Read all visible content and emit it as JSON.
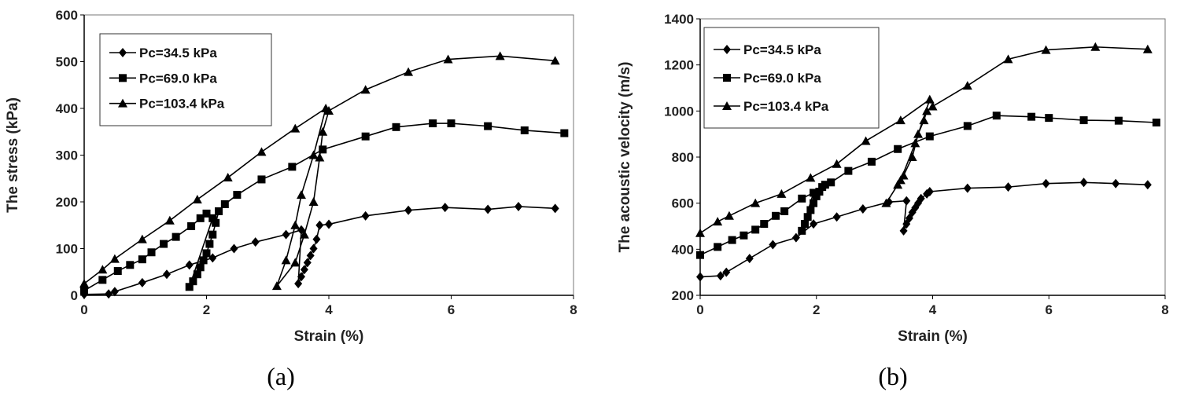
{
  "chart_data": [
    {
      "type": "line",
      "panel_label": "(a)",
      "title": "",
      "xlabel": "Strain (%)",
      "ylabel": "The  stress (kPa)",
      "xlim": [
        0,
        8
      ],
      "ylim": [
        0,
        600
      ],
      "xticks": [
        0,
        2,
        4,
        6,
        8
      ],
      "yticks": [
        0,
        100,
        200,
        300,
        400,
        500,
        600
      ],
      "legend": "top-left",
      "grid": false,
      "series": [
        {
          "name": "Pc=34.5 kPa",
          "marker": "diamond",
          "x": [
            0,
            0.4,
            0.5,
            0.95,
            1.35,
            1.72,
            2.1,
            2.45,
            2.8,
            3.3,
            3.55,
            3.5,
            3.55,
            3.6,
            3.65,
            3.7,
            3.75,
            3.8,
            3.85,
            4.0,
            4.6,
            5.3,
            5.9,
            6.6,
            7.1,
            7.7
          ],
          "y": [
            2,
            3,
            8,
            27,
            45,
            65,
            80,
            100,
            114,
            130,
            140,
            25,
            40,
            55,
            70,
            85,
            100,
            120,
            150,
            152,
            170,
            182,
            188,
            184,
            190,
            186
          ]
        },
        {
          "name": "Pc=69.0 kPa",
          "marker": "square",
          "x": [
            0,
            0.3,
            0.55,
            0.75,
            0.95,
            1.1,
            1.3,
            1.5,
            1.75,
            1.9,
            2.0,
            2.1,
            1.72,
            1.78,
            1.85,
            1.9,
            1.95,
            2.0,
            2.05,
            2.1,
            2.15,
            2.2,
            2.3,
            2.5,
            2.9,
            3.4,
            3.9,
            4.6,
            5.1,
            5.7,
            6.0,
            6.6,
            7.2,
            7.85
          ],
          "y": [
            10,
            33,
            52,
            65,
            77,
            92,
            110,
            125,
            148,
            165,
            175,
            165,
            18,
            30,
            45,
            60,
            75,
            90,
            110,
            130,
            155,
            180,
            195,
            215,
            248,
            275,
            312,
            340,
            360,
            368,
            368,
            362,
            353,
            347
          ]
        },
        {
          "name": "Pc=103.4 kPa",
          "marker": "triangle",
          "x": [
            0,
            0.3,
            0.5,
            0.95,
            1.4,
            1.85,
            2.35,
            2.9,
            3.45,
            3.95,
            3.75,
            3.55,
            3.45,
            3.3,
            3.15,
            3.45,
            3.6,
            3.75,
            3.85,
            3.9,
            4.0,
            4.6,
            5.3,
            5.95,
            6.8,
            7.7
          ],
          "y": [
            25,
            55,
            78,
            120,
            160,
            205,
            252,
            307,
            357,
            400,
            300,
            215,
            150,
            75,
            20,
            70,
            130,
            200,
            295,
            350,
            395,
            440,
            478,
            505,
            512,
            502
          ]
        }
      ]
    },
    {
      "type": "line",
      "panel_label": "(b)",
      "title": "",
      "xlabel": "Strain (%)",
      "ylabel": "The acoustic velocity (m/s)",
      "xlim": [
        0,
        8
      ],
      "ylim": [
        200,
        1400
      ],
      "xticks": [
        0,
        2,
        4,
        6,
        8
      ],
      "yticks": [
        200,
        400,
        600,
        800,
        1000,
        1200,
        1400
      ],
      "legend": "top-left",
      "grid": false,
      "series": [
        {
          "name": "Pc=34.5 kPa",
          "marker": "diamond",
          "x": [
            0,
            0.35,
            0.45,
            0.85,
            1.25,
            1.65,
            1.95,
            2.35,
            2.8,
            3.25,
            3.55,
            3.5,
            3.55,
            3.6,
            3.65,
            3.7,
            3.75,
            3.8,
            3.9,
            3.95,
            4.6,
            5.3,
            5.95,
            6.6,
            7.15,
            7.7
          ],
          "y": [
            280,
            285,
            300,
            360,
            420,
            450,
            510,
            540,
            575,
            605,
            610,
            480,
            510,
            535,
            560,
            580,
            600,
            620,
            640,
            650,
            665,
            670,
            685,
            690,
            685,
            680
          ]
        },
        {
          "name": "Pc=69.0 kPa",
          "marker": "square",
          "x": [
            0,
            0.3,
            0.55,
            0.75,
            0.95,
            1.1,
            1.3,
            1.45,
            1.75,
            1.95,
            1.75,
            1.8,
            1.85,
            1.9,
            1.95,
            2.0,
            2.05,
            2.1,
            2.15,
            2.25,
            2.55,
            2.95,
            3.4,
            3.95,
            4.6,
            5.1,
            5.7,
            6.0,
            6.6,
            7.2,
            7.85
          ],
          "y": [
            375,
            410,
            440,
            460,
            485,
            510,
            545,
            565,
            620,
            645,
            480,
            510,
            540,
            570,
            600,
            630,
            650,
            670,
            680,
            690,
            740,
            780,
            835,
            890,
            935,
            980,
            975,
            970,
            960,
            958,
            950
          ]
        },
        {
          "name": "Pc=103.4 kPa",
          "marker": "triangle",
          "x": [
            0,
            0.3,
            0.5,
            0.95,
            1.4,
            1.9,
            2.35,
            2.85,
            3.45,
            3.95,
            3.7,
            3.45,
            3.2,
            3.4,
            3.5,
            3.65,
            3.75,
            3.85,
            3.9,
            4.0,
            4.6,
            5.3,
            5.95,
            6.8,
            7.7
          ],
          "y": [
            470,
            520,
            545,
            600,
            640,
            710,
            770,
            870,
            960,
            1050,
            860,
            700,
            600,
            680,
            720,
            800,
            900,
            960,
            1000,
            1020,
            1110,
            1225,
            1265,
            1278,
            1268
          ]
        }
      ]
    }
  ]
}
